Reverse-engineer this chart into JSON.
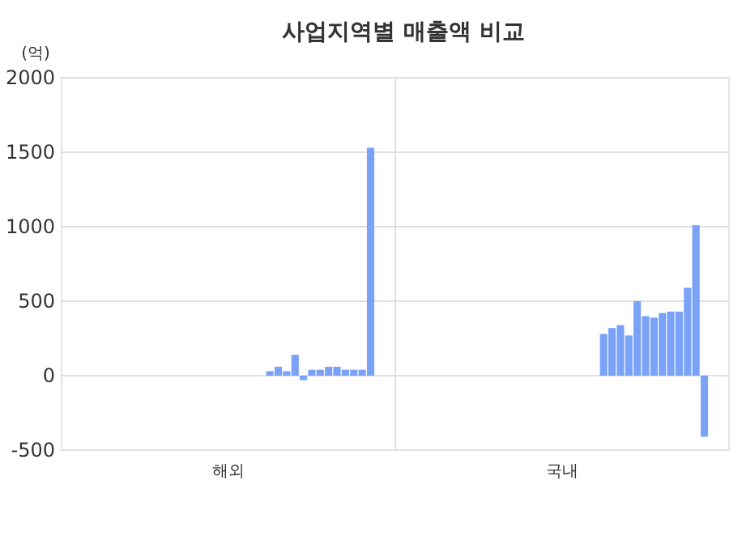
{
  "chart_data": {
    "type": "bar",
    "title": "사업지역별 매출액 비교",
    "ylabel": "(억)",
    "categories": [
      "해외",
      "국내"
    ],
    "ylim": [
      -500,
      2000
    ],
    "yticks": [
      -500,
      0,
      500,
      1000,
      1500,
      2000
    ],
    "grid": true,
    "series": [
      {
        "values": [
          null,
          null
        ]
      },
      {
        "values": [
          null,
          null
        ]
      },
      {
        "values": [
          null,
          null
        ]
      },
      {
        "values": [
          null,
          null
        ]
      },
      {
        "values": [
          null,
          null
        ]
      },
      {
        "values": [
          null,
          null
        ]
      },
      {
        "values": [
          null,
          null
        ]
      },
      {
        "values": [
          null,
          null
        ]
      },
      {
        "values": [
          null,
          null
        ]
      },
      {
        "values": [
          null,
          null
        ]
      },
      {
        "values": [
          null,
          null
        ]
      },
      {
        "values": [
          null,
          null
        ]
      },
      {
        "values": [
          null,
          null
        ]
      },
      {
        "values": [
          null,
          null
        ]
      },
      {
        "values": [
          null,
          null
        ]
      },
      {
        "values": [
          null,
          null
        ]
      },
      {
        "values": [
          null,
          null
        ]
      },
      {
        "values": [
          null,
          null
        ]
      },
      {
        "values": [
          null,
          null
        ]
      },
      {
        "values": [
          null,
          null
        ]
      },
      {
        "values": [
          null,
          null
        ]
      },
      {
        "values": [
          null,
          null
        ]
      },
      {
        "color": "#7aa2f7",
        "values": [
          30,
          280
        ]
      },
      {
        "color": "#7aa2f7",
        "values": [
          60,
          320
        ]
      },
      {
        "color": "#7aa2f7",
        "values": [
          30,
          340
        ]
      },
      {
        "color": "#7aa2f7",
        "values": [
          140,
          270
        ]
      },
      {
        "color": "#7aa2f7",
        "values": [
          -30,
          500
        ]
      },
      {
        "color": "#7aa2f7",
        "values": [
          40,
          400
        ]
      },
      {
        "color": "#7aa2f7",
        "values": [
          40,
          390
        ]
      },
      {
        "color": "#7aa2f7",
        "values": [
          60,
          420
        ]
      },
      {
        "color": "#7aa2f7",
        "values": [
          60,
          430
        ]
      },
      {
        "color": "#7aa2f7",
        "values": [
          40,
          430
        ]
      },
      {
        "color": "#7aa2f7",
        "values": [
          40,
          590
        ]
      },
      {
        "color": "#7aa2f7",
        "values": [
          40,
          1010
        ]
      },
      {
        "color": "#7aa2f7",
        "values": [
          1530,
          -410
        ]
      }
    ]
  }
}
